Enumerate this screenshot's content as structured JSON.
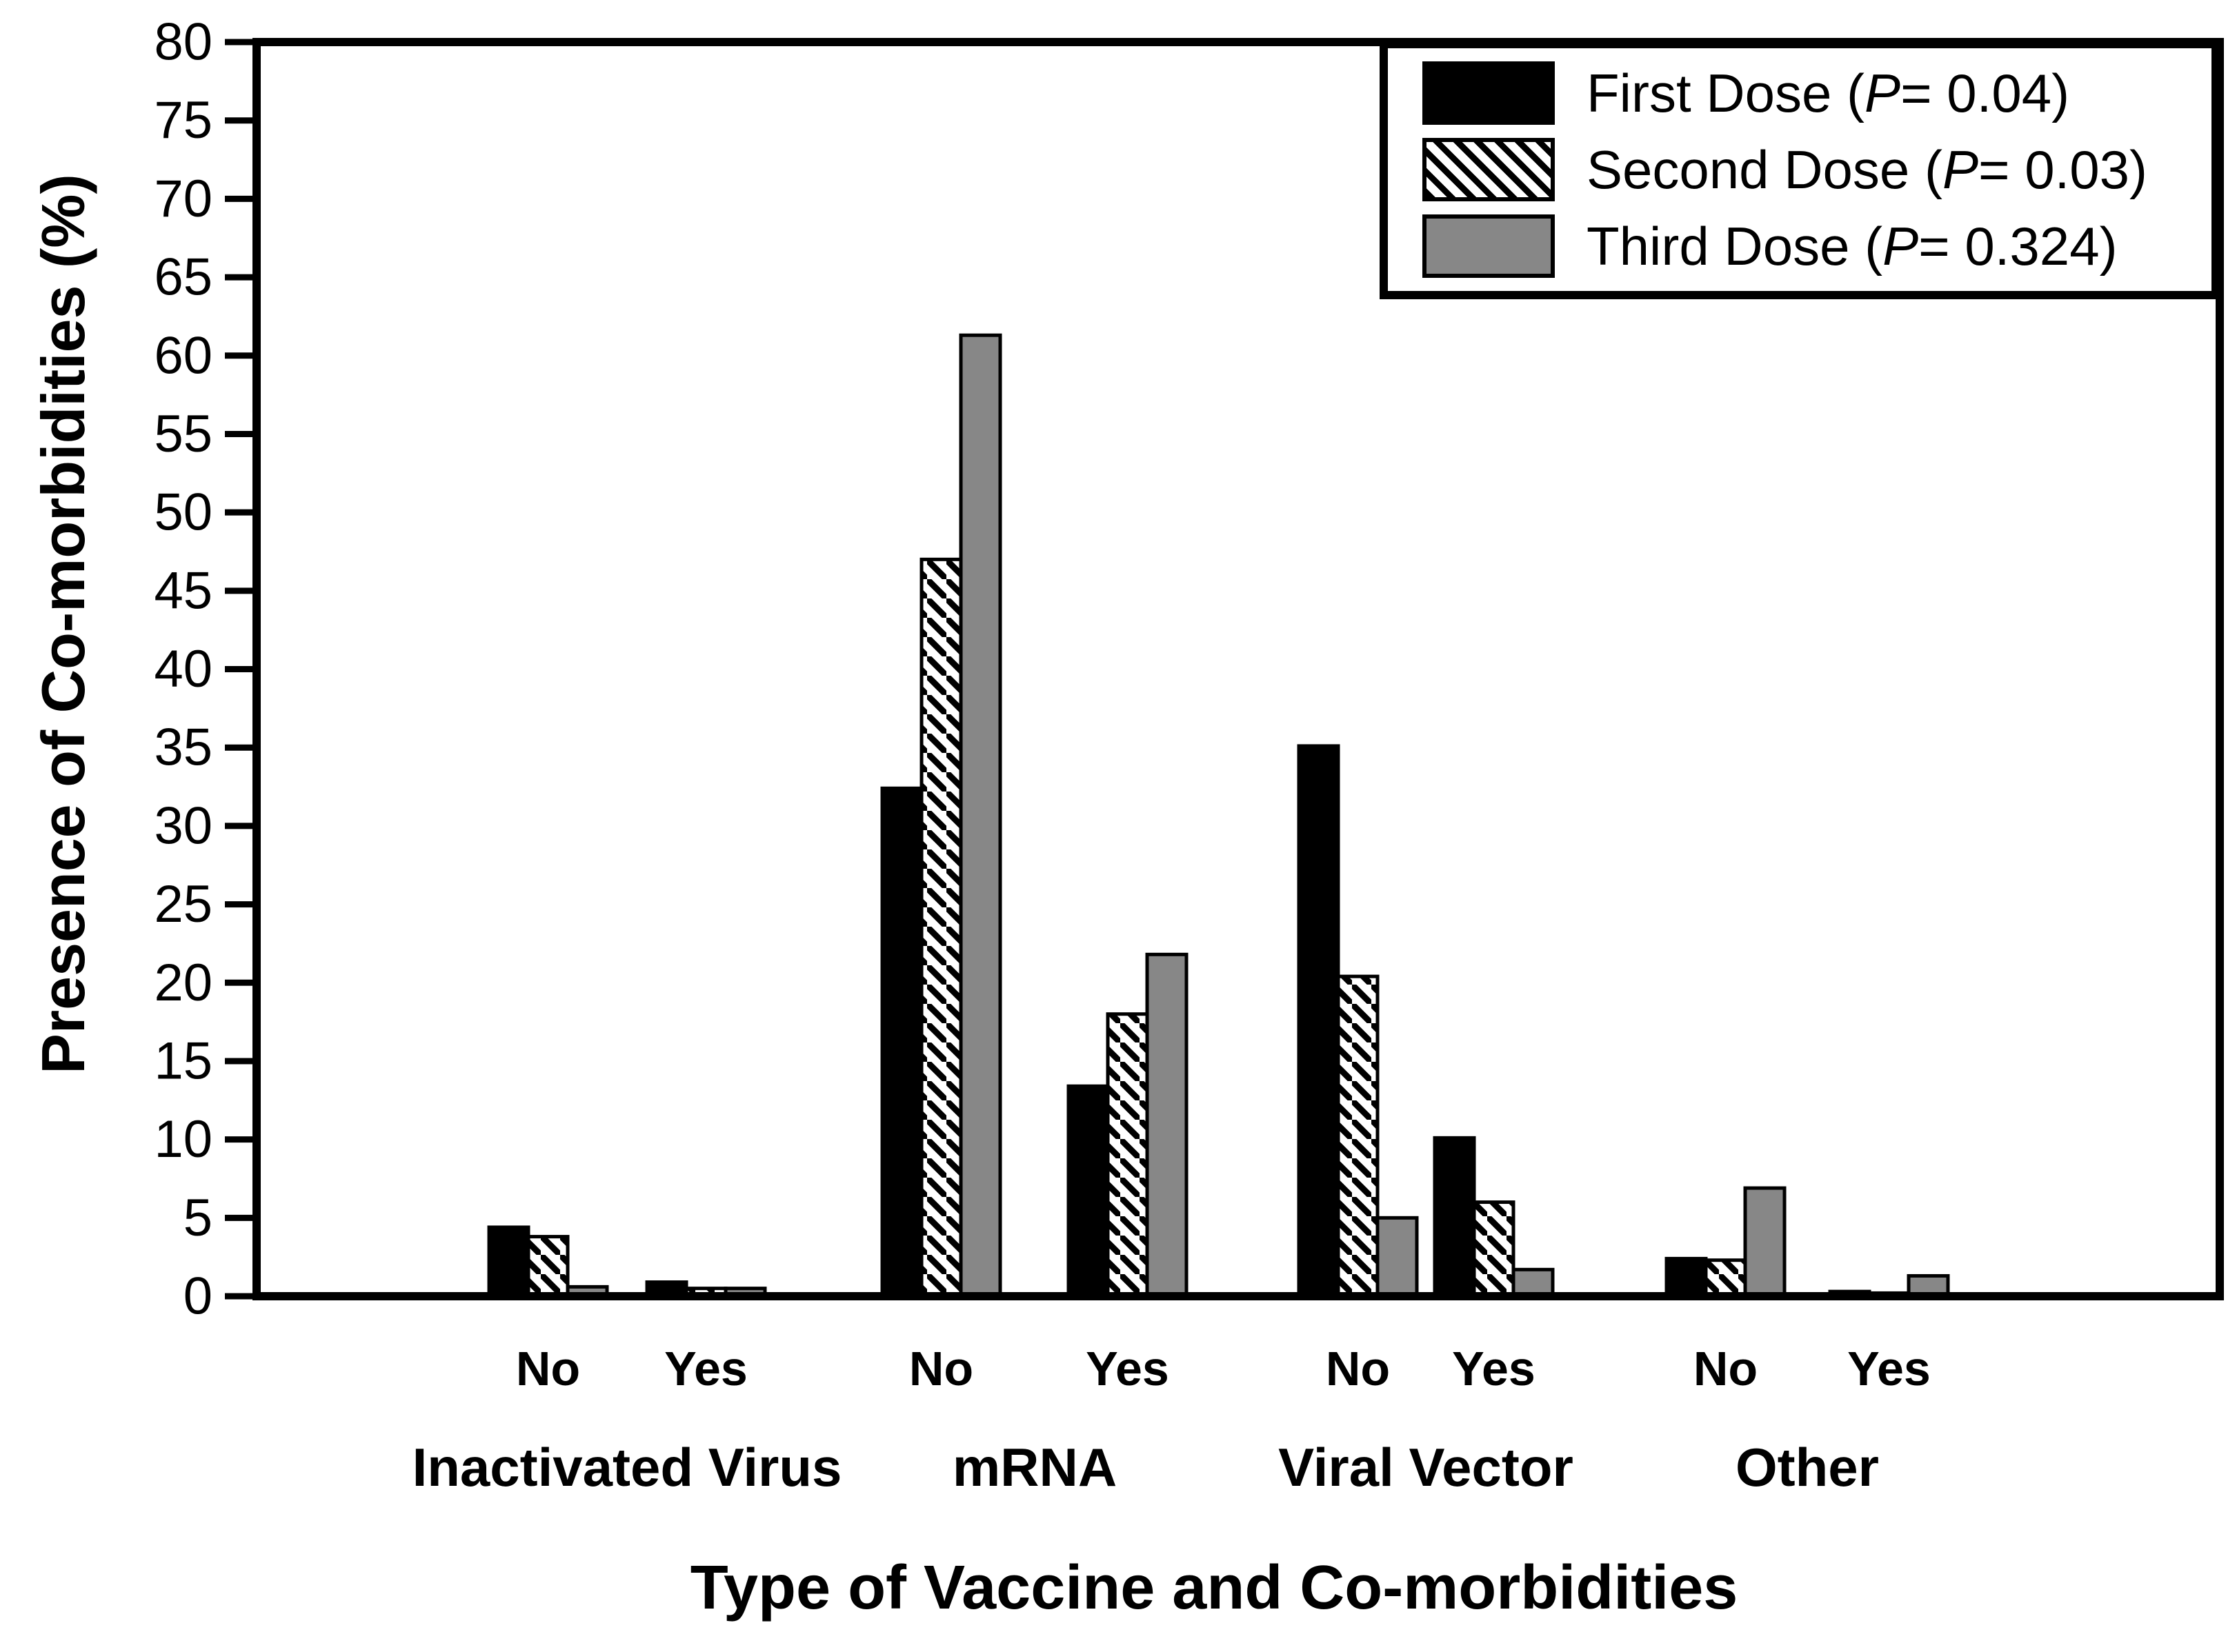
{
  "figure": {
    "background_color": "#ffffff",
    "frame_color": "#000000"
  },
  "legend": {
    "entries": [
      {
        "pre": "First Dose (",
        "p": "P",
        "post": "= 0.04)",
        "swatch": "black-solid"
      },
      {
        "pre": "Second Dose (",
        "p": "P",
        "post": "= 0.03)",
        "swatch": "diagonal-hatch"
      },
      {
        "pre": "Third Dose (",
        "p": "P",
        "post": "= 0.324)",
        "swatch": "gray-solid"
      }
    ]
  },
  "chart_data": {
    "type": "bar",
    "title": "",
    "xlabel": "Type of Vaccine and Co-morbidities",
    "ylabel": "Presence of Co-morbidities (%)",
    "ylim": [
      0,
      80
    ],
    "ytick_step": 5,
    "ytick_labels": [
      "0",
      "5",
      "10",
      "15",
      "20",
      "25",
      "30",
      "35",
      "40",
      "45",
      "50",
      "55",
      "60",
      "65",
      "70",
      "75",
      "80"
    ],
    "grid": false,
    "legend_position": "top-right-inside",
    "series": [
      {
        "name": "First Dose (P= 0.04)",
        "p_value": 0.04,
        "style": "solid",
        "color": "#000000"
      },
      {
        "name": "Second Dose (P= 0.03)",
        "p_value": 0.03,
        "style": "diagonal-hatch",
        "color": "#000000"
      },
      {
        "name": "Third Dose (P= 0.324)",
        "p_value": 0.324,
        "style": "solid",
        "color": "#878787"
      }
    ],
    "categories": [
      "Inactivated Virus",
      "mRNA",
      "Viral Vector",
      "Other"
    ],
    "groups": [
      {
        "category": "Inactivated Virus",
        "comorbidity": "No",
        "values": [
          4.4,
          3.8,
          0.6
        ]
      },
      {
        "category": "Inactivated Virus",
        "comorbidity": "Yes",
        "values": [
          0.9,
          0.5,
          0.5
        ]
      },
      {
        "category": "mRNA",
        "comorbidity": "No",
        "values": [
          32.4,
          47.0,
          61.3
        ]
      },
      {
        "category": "mRNA",
        "comorbidity": "Yes",
        "values": [
          13.4,
          18.0,
          21.8
        ]
      },
      {
        "category": "Viral Vector",
        "comorbidity": "No",
        "values": [
          35.1,
          20.4,
          5.0
        ]
      },
      {
        "category": "Viral Vector",
        "comorbidity": "Yes",
        "values": [
          10.1,
          6.0,
          1.7
        ]
      },
      {
        "category": "Other",
        "comorbidity": "No",
        "values": [
          2.4,
          2.3,
          6.9
        ]
      },
      {
        "category": "Other",
        "comorbidity": "Yes",
        "values": [
          0.3,
          0.2,
          1.3
        ]
      }
    ]
  }
}
